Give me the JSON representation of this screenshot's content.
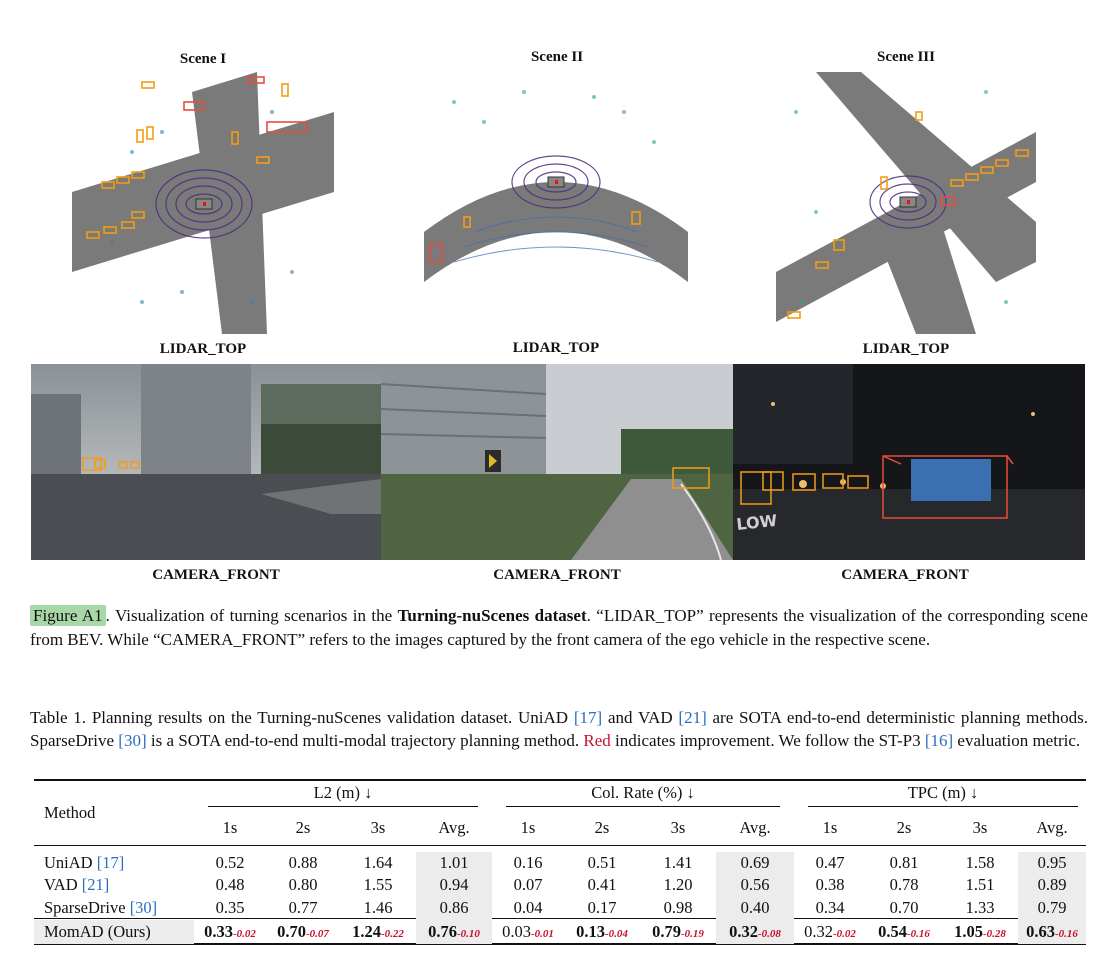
{
  "scenes": [
    {
      "title": "Scene I",
      "lidar_label": "LIDAR_TOP",
      "camera_label": "CAMERA_FRONT"
    },
    {
      "title": "Scene II",
      "lidar_label": "LIDAR_TOP",
      "camera_label": "CAMERA_FRONT"
    },
    {
      "title": "Scene III",
      "lidar_label": "LIDAR_TOP",
      "camera_label": "CAMERA_FRONT"
    }
  ],
  "camera_texts": {
    "road_marking": "LOW"
  },
  "figure_caption": {
    "label": "Figure A1",
    "text_1": ". Visualization of turning scenarios in the ",
    "bold": "Turning-nuScenes dataset",
    "text_2": ". “LIDAR_TOP” represents the visualization of the corresponding scene from BEV. While “CAMERA_FRONT” refers to the images captured by the front camera of the ego vehicle in the respective scene."
  },
  "table_caption": {
    "t1": "Table 1. Planning results on the Turning-nuScenes validation dataset. UniAD ",
    "r1": "[17]",
    "t2": " and VAD ",
    "r2": "[21]",
    "t3": " are SOTA end-to-end deterministic planning methods. SparseDrive ",
    "r3": "[30]",
    "t4": " is a SOTA end-to-end multi-modal trajectory planning method. ",
    "red": "Red",
    "t5": " indicates improvement. We follow the ST-P3 ",
    "r4": "[16]",
    "t6": " evaluation metric."
  },
  "table": {
    "method_header": "Method",
    "groups": [
      "L2 (m) ↓",
      "Col. Rate (%) ↓",
      "TPC (m) ↓"
    ],
    "subheaders": [
      "1s",
      "2s",
      "3s",
      "Avg."
    ],
    "rows": [
      {
        "name": "UniAD ",
        "ref": "[17]",
        "l2": [
          "0.52",
          "0.88",
          "1.64",
          "1.01"
        ],
        "col": [
          "0.16",
          "0.51",
          "1.41",
          "0.69"
        ],
        "tpc": [
          "0.47",
          "0.81",
          "1.58",
          "0.95"
        ]
      },
      {
        "name": "VAD ",
        "ref": "[21]",
        "l2": [
          "0.48",
          "0.80",
          "1.55",
          "0.94"
        ],
        "col": [
          "0.07",
          "0.41",
          "1.20",
          "0.56"
        ],
        "tpc": [
          "0.38",
          "0.78",
          "1.51",
          "0.89"
        ]
      },
      {
        "name": "SparseDrive ",
        "ref": "[30]",
        "l2": [
          "0.35",
          "0.77",
          "1.46",
          "0.86"
        ],
        "col": [
          "0.04",
          "0.17",
          "0.98",
          "0.40"
        ],
        "tpc": [
          "0.34",
          "0.70",
          "1.33",
          "0.79"
        ]
      }
    ],
    "ours": {
      "name": "MomAD (Ours)",
      "l2": [
        [
          "0.33",
          "-0.02"
        ],
        [
          "0.70",
          "-0.07"
        ],
        [
          "1.24",
          "-0.22"
        ],
        [
          "0.76",
          "-0.10"
        ]
      ],
      "col": [
        [
          "0.03",
          "-0.01"
        ],
        [
          "0.13",
          "-0.04"
        ],
        [
          "0.79",
          "-0.19"
        ],
        [
          "0.32",
          "-0.08"
        ]
      ],
      "tpc": [
        [
          "0.32",
          "-0.02"
        ],
        [
          "0.54",
          "-0.16"
        ],
        [
          "1.05",
          "-0.28"
        ],
        [
          "0.63",
          "-0.16"
        ]
      ]
    }
  },
  "colors": {
    "road": "#7a7a7a",
    "box_orange": "#f39c12",
    "box_red": "#e74c3c",
    "ego_purple": "#3d1f6e",
    "ref_blue": "#2a6ebf",
    "improve_red": "#c8102e",
    "highlight_green": "#a8d8a8"
  }
}
